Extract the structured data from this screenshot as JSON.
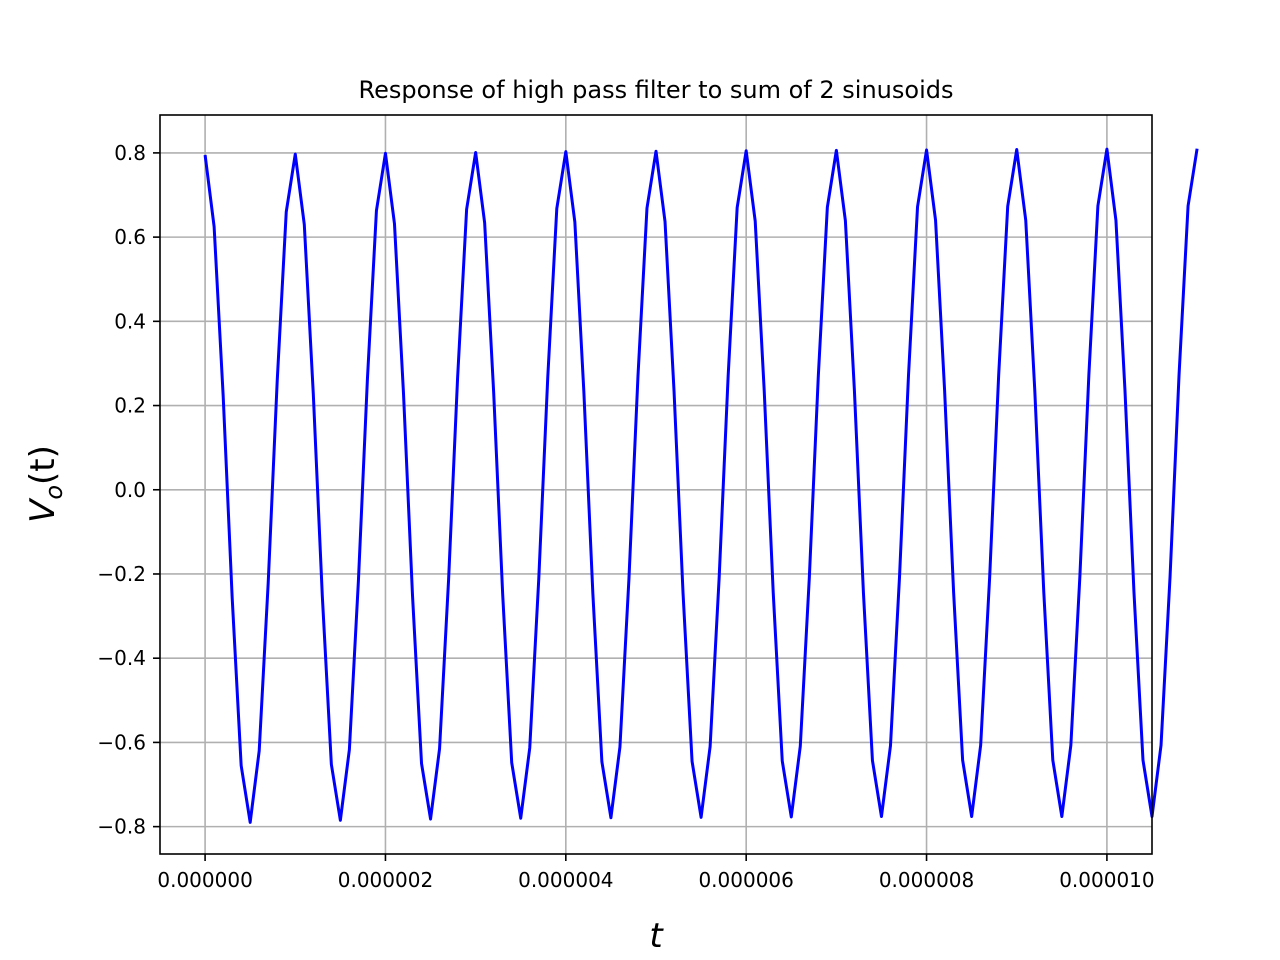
{
  "chart_data": {
    "type": "line",
    "title": "Response of high pass filter to sum of 2 sinusoids",
    "xlabel": "t",
    "ylabel_main": "V",
    "ylabel_sub": "o",
    "ylabel_rest": "(t)",
    "xlim": [
      -5e-07,
      1.05e-05
    ],
    "ylim": [
      -0.865,
      0.89
    ],
    "grid": true,
    "xticks": [
      0,
      2e-06,
      4e-06,
      6e-06,
      8e-06,
      1e-05
    ],
    "xtick_labels": [
      "0.000000",
      "0.000002",
      "0.000004",
      "0.000006",
      "0.000008",
      "0.000010"
    ],
    "yticks": [
      -0.8,
      -0.6,
      -0.4,
      -0.2,
      0.0,
      0.2,
      0.4,
      0.6,
      0.8
    ],
    "ytick_labels": [
      "−0.8",
      "−0.6",
      "−0.4",
      "−0.2",
      "0.0",
      "0.2",
      "0.4",
      "0.6",
      "0.8"
    ],
    "series": [
      {
        "color": "#0000ff",
        "x_start": 0,
        "x_step": 1e-07,
        "y": [
          0.795,
          0.625,
          0.225,
          -0.255,
          -0.655,
          -0.79,
          -0.62,
          -0.22,
          0.26,
          0.66,
          0.797,
          0.63,
          0.227,
          -0.253,
          -0.652,
          -0.785,
          -0.617,
          -0.217,
          0.263,
          0.663,
          0.799,
          0.632,
          0.229,
          -0.251,
          -0.65,
          -0.782,
          -0.615,
          -0.214,
          0.266,
          0.666,
          0.801,
          0.634,
          0.231,
          -0.249,
          -0.648,
          -0.78,
          -0.613,
          -0.212,
          0.268,
          0.668,
          0.803,
          0.636,
          0.233,
          -0.247,
          -0.646,
          -0.779,
          -0.611,
          -0.211,
          0.269,
          0.669,
          0.804,
          0.637,
          0.234,
          -0.246,
          -0.645,
          -0.778,
          -0.61,
          -0.21,
          0.27,
          0.67,
          0.805,
          0.638,
          0.235,
          -0.245,
          -0.644,
          -0.777,
          -0.609,
          -0.209,
          0.271,
          0.671,
          0.806,
          0.639,
          0.236,
          -0.244,
          -0.643,
          -0.776,
          -0.608,
          -0.208,
          0.272,
          0.672,
          0.807,
          0.64,
          0.237,
          -0.243,
          -0.642,
          -0.776,
          -0.607,
          -0.207,
          0.273,
          0.673,
          0.808,
          0.64,
          0.237,
          -0.243,
          -0.642,
          -0.776,
          -0.607,
          -0.207,
          0.273,
          0.674,
          0.809,
          0.64,
          0.237,
          -0.243,
          -0.642,
          -0.776,
          -0.607,
          -0.207,
          0.273,
          0.674,
          0.81
        ]
      }
    ]
  }
}
